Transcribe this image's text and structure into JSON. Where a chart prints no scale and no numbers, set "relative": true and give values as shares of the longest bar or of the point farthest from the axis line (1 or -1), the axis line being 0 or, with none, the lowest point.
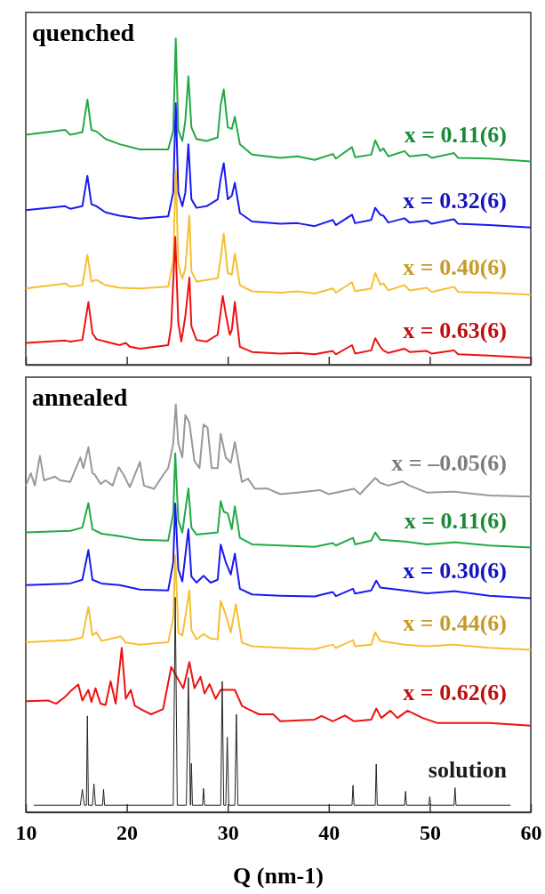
{
  "chart_data": [
    {
      "type": "line",
      "title": "quenched",
      "relative": true,
      "xlim": [
        10,
        60
      ],
      "xticks": [
        {
          "value": 10,
          "label": null
        },
        {
          "value": 20,
          "label": null
        },
        {
          "value": 30,
          "label": null
        },
        {
          "value": 40,
          "label": null
        },
        {
          "value": 50,
          "label": null
        },
        {
          "value": 60,
          "label": null
        }
      ],
      "tick_labels": false,
      "grid": false,
      "legend": false,
      "marker": "none",
      "series": [
        {
          "name": "x = 0.11(6)",
          "color": "#22aa44",
          "x": [
            10,
            13.9,
            14.4,
            15.6,
            16.1,
            16.5,
            17.0,
            17.9,
            19.3,
            21.3,
            24.1,
            24.6,
            24.85,
            25.1,
            25.5,
            25.8,
            26.1,
            26.4,
            26.9,
            27.9,
            29.0,
            29.3,
            29.6,
            30.0,
            30.4,
            30.7,
            31.2,
            32.4,
            35.2,
            36.9,
            38.6,
            40.4,
            40.7,
            42.3,
            42.6,
            44.2,
            44.6,
            45.1,
            45.4,
            45.9,
            47.5,
            48.0,
            49.7,
            50.2,
            52.4,
            52.8,
            55.9,
            60
          ],
          "values": [
            0.705,
            0.72,
            0.705,
            0.713,
            0.813,
            0.72,
            0.715,
            0.692,
            0.676,
            0.66,
            0.66,
            0.718,
            1.0,
            0.718,
            0.686,
            0.749,
            0.884,
            0.728,
            0.692,
            0.686,
            0.697,
            0.797,
            0.844,
            0.728,
            0.723,
            0.76,
            0.676,
            0.644,
            0.634,
            0.639,
            0.628,
            0.646,
            0.632,
            0.667,
            0.636,
            0.644,
            0.688,
            0.655,
            0.663,
            0.639,
            0.655,
            0.639,
            0.644,
            0.634,
            0.649,
            0.634,
            0.632,
            0.623
          ]
        },
        {
          "name": "x = 0.32(6)",
          "color": "#1a1aee",
          "x": [
            10,
            13.9,
            14.4,
            15.6,
            16.1,
            16.5,
            17.0,
            17.9,
            19.3,
            21.3,
            24.1,
            24.6,
            24.85,
            25.1,
            25.5,
            25.8,
            26.1,
            26.4,
            26.9,
            27.9,
            29.0,
            29.3,
            29.6,
            30.0,
            30.4,
            30.7,
            31.2,
            32.4,
            35.2,
            36.9,
            38.6,
            40.4,
            40.7,
            42.3,
            42.6,
            44.2,
            44.6,
            45.1,
            45.4,
            45.9,
            47.5,
            48.0,
            49.7,
            50.2,
            52.4,
            52.8,
            55.9,
            60
          ],
          "values": [
            0.474,
            0.486,
            0.478,
            0.486,
            0.579,
            0.492,
            0.486,
            0.467,
            0.457,
            0.448,
            0.455,
            0.528,
            0.802,
            0.528,
            0.486,
            0.528,
            0.676,
            0.507,
            0.481,
            0.486,
            0.507,
            0.571,
            0.618,
            0.507,
            0.518,
            0.558,
            0.465,
            0.439,
            0.432,
            0.434,
            0.425,
            0.444,
            0.428,
            0.46,
            0.434,
            0.444,
            0.481,
            0.46,
            0.457,
            0.436,
            0.449,
            0.436,
            0.442,
            0.432,
            0.446,
            0.432,
            0.428,
            0.421
          ]
        },
        {
          "name": "x = 0.40(6)",
          "color": "#f5c030",
          "x": [
            10,
            13.9,
            14.4,
            15.6,
            16.1,
            16.5,
            17.0,
            17.9,
            19.3,
            21.3,
            24.1,
            24.6,
            24.85,
            25.1,
            25.5,
            25.8,
            26.2,
            26.4,
            26.9,
            27.9,
            29.0,
            29.3,
            29.6,
            30.0,
            30.4,
            30.7,
            31.2,
            32.4,
            35.2,
            36.9,
            38.6,
            40.4,
            40.7,
            42.3,
            42.6,
            44.2,
            44.6,
            45.1,
            45.4,
            45.9,
            47.5,
            48.0,
            49.7,
            50.2,
            52.4,
            52.8,
            55.9,
            60
          ],
          "values": [
            0.234,
            0.249,
            0.239,
            0.244,
            0.337,
            0.255,
            0.26,
            0.244,
            0.236,
            0.234,
            0.239,
            0.318,
            0.597,
            0.307,
            0.263,
            0.297,
            0.457,
            0.286,
            0.255,
            0.26,
            0.265,
            0.328,
            0.402,
            0.281,
            0.276,
            0.341,
            0.244,
            0.225,
            0.221,
            0.225,
            0.218,
            0.234,
            0.221,
            0.253,
            0.225,
            0.234,
            0.281,
            0.246,
            0.249,
            0.228,
            0.244,
            0.228,
            0.236,
            0.223,
            0.239,
            0.223,
            0.221,
            0.215
          ]
        },
        {
          "name": "x = 0.63(6)",
          "color": "#ee1111",
          "x": [
            10,
            13.9,
            14.4,
            15.6,
            16.2,
            16.6,
            17.0,
            17.9,
            19.3,
            19.9,
            20.3,
            21.3,
            24.1,
            24.4,
            24.8,
            25.1,
            25.4,
            25.8,
            26.2,
            26.4,
            26.9,
            27.9,
            29.0,
            29.5,
            29.8,
            30.2,
            30.4,
            30.7,
            31.2,
            32.4,
            35.2,
            36.9,
            38.6,
            40.4,
            40.7,
            42.3,
            42.6,
            44.2,
            44.6,
            45.1,
            45.4,
            45.9,
            47.5,
            48.0,
            49.7,
            50.2,
            52.4,
            52.8,
            55.9,
            60
          ],
          "values": [
            0.067,
            0.074,
            0.071,
            0.076,
            0.192,
            0.097,
            0.078,
            0.071,
            0.06,
            0.067,
            0.055,
            0.049,
            0.06,
            0.118,
            0.392,
            0.128,
            0.071,
            0.149,
            0.267,
            0.118,
            0.076,
            0.071,
            0.092,
            0.211,
            0.155,
            0.092,
            0.107,
            0.192,
            0.055,
            0.039,
            0.034,
            0.036,
            0.032,
            0.042,
            0.032,
            0.06,
            0.034,
            0.044,
            0.081,
            0.055,
            0.044,
            0.036,
            0.049,
            0.039,
            0.042,
            0.034,
            0.044,
            0.032,
            0.028,
            0.021
          ]
        }
      ]
    },
    {
      "type": "line",
      "title": "annealed",
      "xlabel": "Q (nm-1)",
      "relative": true,
      "xlim": [
        10,
        60
      ],
      "xticks": [
        10,
        20,
        30,
        40,
        50,
        60
      ],
      "tick_labels": "x",
      "grid": false,
      "legend": false,
      "marker": "none",
      "series": [
        {
          "name": "x = –0.05(6)",
          "color": "#999999",
          "x": [
            10,
            10.5,
            10.9,
            11.4,
            11.8,
            12.9,
            13.4,
            14.4,
            15.4,
            15.7,
            16.2,
            16.6,
            16.8,
            17.4,
            17.9,
            18.6,
            19.2,
            19.7,
            20.3,
            21.3,
            21.7,
            22.7,
            23.6,
            24.1,
            24.6,
            24.85,
            25.1,
            25.5,
            25.8,
            26.2,
            26.7,
            27.2,
            27.6,
            28.0,
            28.4,
            29.0,
            29.3,
            29.8,
            30.3,
            30.7,
            31.4,
            32.0,
            32.7,
            33.9,
            35.2,
            36.9,
            39.1,
            40.0,
            42.5,
            43.1,
            44.6,
            45.1,
            45.9,
            47.3,
            48.0,
            49.7,
            52.4,
            55.9,
            60
          ],
          "values": [
            0.801,
            0.831,
            0.801,
            0.874,
            0.814,
            0.823,
            0.814,
            0.81,
            0.87,
            0.844,
            0.895,
            0.831,
            0.829,
            0.805,
            0.814,
            0.801,
            0.846,
            0.827,
            0.797,
            0.859,
            0.801,
            0.793,
            0.827,
            0.844,
            0.904,
            1.0,
            0.904,
            0.87,
            0.974,
            0.955,
            0.861,
            0.844,
            0.951,
            0.943,
            0.844,
            0.844,
            0.928,
            0.87,
            0.857,
            0.908,
            0.81,
            0.818,
            0.793,
            0.794,
            0.78,
            0.784,
            0.79,
            0.78,
            0.793,
            0.78,
            0.82,
            0.808,
            0.801,
            0.811,
            0.801,
            0.784,
            0.786,
            0.777,
            0.774
          ]
        },
        {
          "name": "x = 0.11(6)",
          "color": "#22aa44",
          "x": [
            10,
            14.4,
            15.6,
            16.2,
            16.6,
            17.5,
            19.3,
            21.3,
            24.1,
            24.6,
            24.8,
            25.1,
            25.5,
            26.1,
            26.4,
            26.9,
            29.0,
            29.3,
            29.6,
            30.0,
            30.4,
            30.7,
            31.2,
            32.4,
            35.2,
            38.6,
            40.4,
            40.7,
            42.4,
            42.6,
            44.2,
            44.6,
            45.1,
            47.5,
            49.7,
            52.4,
            55.9,
            60
          ],
          "values": [
            0.686,
            0.69,
            0.698,
            0.758,
            0.694,
            0.683,
            0.677,
            0.668,
            0.666,
            0.733,
            0.88,
            0.716,
            0.686,
            0.794,
            0.698,
            0.681,
            0.686,
            0.763,
            0.737,
            0.733,
            0.694,
            0.75,
            0.673,
            0.657,
            0.654,
            0.651,
            0.66,
            0.654,
            0.673,
            0.657,
            0.666,
            0.686,
            0.668,
            0.664,
            0.657,
            0.662,
            0.654,
            0.649
          ]
        },
        {
          "name": "x = 0.30(6)",
          "color": "#1a1aee",
          "x": [
            10,
            14.4,
            15.6,
            16.2,
            16.6,
            17.5,
            19.3,
            21.3,
            24.1,
            24.6,
            24.8,
            25.1,
            25.5,
            26.1,
            26.4,
            26.9,
            27.6,
            28.3,
            29.0,
            29.3,
            29.8,
            30.3,
            30.7,
            31.2,
            32.4,
            35.2,
            38.6,
            40.4,
            40.7,
            42.4,
            42.6,
            44.2,
            44.7,
            45.1,
            47.5,
            49.7,
            52.4,
            55.9,
            60
          ],
          "values": [
            0.557,
            0.561,
            0.57,
            0.643,
            0.57,
            0.561,
            0.557,
            0.546,
            0.544,
            0.613,
            0.757,
            0.596,
            0.566,
            0.694,
            0.578,
            0.563,
            0.58,
            0.563,
            0.57,
            0.656,
            0.613,
            0.583,
            0.634,
            0.548,
            0.534,
            0.531,
            0.529,
            0.54,
            0.53,
            0.548,
            0.536,
            0.544,
            0.568,
            0.551,
            0.544,
            0.537,
            0.542,
            0.531,
            0.525
          ]
        },
        {
          "name": "x = 0.44(6)",
          "color": "#f5c030",
          "x": [
            10,
            14.4,
            15.6,
            16.2,
            16.6,
            17.0,
            17.5,
            19.4,
            19.9,
            21.3,
            22.7,
            24.1,
            24.6,
            24.8,
            25.1,
            25.5,
            26.2,
            26.4,
            26.9,
            27.6,
            28.3,
            29.0,
            29.3,
            29.8,
            30.3,
            30.8,
            31.4,
            32.4,
            35.2,
            38.6,
            40.4,
            40.7,
            42.4,
            42.6,
            44.2,
            44.6,
            45.1,
            47.5,
            49.7,
            52.4,
            55.9,
            60
          ],
          "values": [
            0.417,
            0.422,
            0.428,
            0.503,
            0.434,
            0.441,
            0.42,
            0.431,
            0.416,
            0.411,
            0.414,
            0.417,
            0.476,
            0.63,
            0.441,
            0.433,
            0.544,
            0.446,
            0.424,
            0.437,
            0.426,
            0.424,
            0.518,
            0.484,
            0.441,
            0.51,
            0.416,
            0.407,
            0.403,
            0.4,
            0.411,
            0.403,
            0.422,
            0.407,
            0.411,
            0.441,
            0.42,
            0.411,
            0.407,
            0.411,
            0.403,
            0.398
          ]
        },
        {
          "name": "x = 0.62(6)",
          "color": "#ee1111",
          "x": [
            10,
            12.2,
            13.0,
            13.9,
            14.4,
            15.2,
            15.6,
            16.2,
            16.5,
            16.9,
            17.4,
            17.9,
            18.4,
            18.9,
            19.5,
            19.9,
            20.4,
            20.8,
            21.5,
            22.4,
            23.6,
            24.4,
            24.8,
            25.2,
            25.6,
            26.2,
            26.7,
            27.3,
            27.7,
            28.2,
            28.8,
            29.3,
            30.0,
            30.7,
            31.4,
            32.0,
            33.1,
            34.5,
            35.2,
            38.6,
            39.3,
            40.4,
            41.6,
            42.5,
            44.2,
            44.7,
            45.2,
            46.1,
            46.8,
            47.8,
            49.3,
            50.7,
            55.9,
            60
          ],
          "values": [
            0.272,
            0.274,
            0.266,
            0.283,
            0.296,
            0.313,
            0.274,
            0.3,
            0.27,
            0.304,
            0.266,
            0.263,
            0.321,
            0.266,
            0.403,
            0.278,
            0.3,
            0.261,
            0.251,
            0.24,
            0.253,
            0.356,
            0.338,
            0.321,
            0.304,
            0.368,
            0.304,
            0.332,
            0.291,
            0.314,
            0.278,
            0.3,
            0.3,
            0.3,
            0.261,
            0.253,
            0.24,
            0.24,
            0.223,
            0.227,
            0.236,
            0.223,
            0.237,
            0.223,
            0.227,
            0.254,
            0.231,
            0.249,
            0.231,
            0.249,
            0.231,
            0.219,
            0.219,
            0.212
          ]
        },
        {
          "name": "solution",
          "color": "#222222",
          "x": [
            10.8,
            15.4,
            15.6,
            15.8,
            16.0,
            16.1,
            16.2,
            16.6,
            16.75,
            16.9,
            17.6,
            17.7,
            17.8,
            24.6,
            24.8,
            25.0,
            25.9,
            26.1,
            26.3,
            26.4,
            26.5,
            27.5,
            27.6,
            27.7,
            29.3,
            29.45,
            29.6,
            29.8,
            29.95,
            30.1,
            30.7,
            30.85,
            31.0,
            42.3,
            42.4,
            42.5,
            44.6,
            44.7,
            44.8,
            47.5,
            47.6,
            47.7,
            49.9,
            50.0,
            50.1,
            52.4,
            52.5,
            52.6,
            58.0
          ],
          "values": [
            0.017,
            0.017,
            0.056,
            0.017,
            0.017,
            0.236,
            0.017,
            0.017,
            0.069,
            0.017,
            0.017,
            0.056,
            0.017,
            0.017,
            0.527,
            0.017,
            0.017,
            0.33,
            0.017,
            0.12,
            0.017,
            0.017,
            0.058,
            0.017,
            0.017,
            0.321,
            0.017,
            0.017,
            0.184,
            0.017,
            0.017,
            0.24,
            0.017,
            0.017,
            0.066,
            0.017,
            0.017,
            0.118,
            0.017,
            0.017,
            0.051,
            0.017,
            0.017,
            0.038,
            0.017,
            0.017,
            0.06,
            0.017,
            0.017
          ]
        }
      ]
    }
  ]
}
